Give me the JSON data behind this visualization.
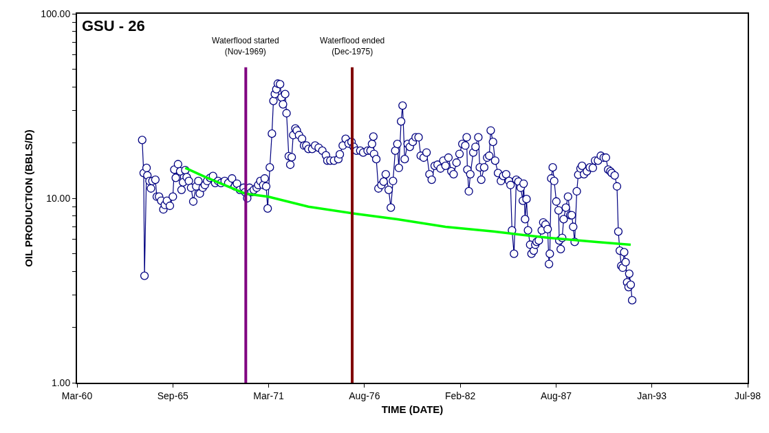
{
  "chart_data": {
    "type": "line",
    "title": "GSU - 26",
    "xlabel": "TIME (DATE)",
    "ylabel": "OIL PRODUCTION (BBLS/D)",
    "log": "y",
    "xlim": [
      "1960-03-25",
      "1998-07-22"
    ],
    "xticks": [
      {
        "value": "1960-03-25",
        "label": "Mar-60"
      },
      {
        "value": "1965-09-15",
        "label": "Sep-65"
      },
      {
        "value": "1971-03-07",
        "label": "Mar-71"
      },
      {
        "value": "1976-08-27",
        "label": "Aug-76"
      },
      {
        "value": "1982-02-17",
        "label": "Feb-82"
      },
      {
        "value": "1987-08-10",
        "label": "Aug-87"
      },
      {
        "value": "1993-01-30",
        "label": "Jan-93"
      },
      {
        "value": "1998-07-22",
        "label": "Jul-98"
      }
    ],
    "ylim": [
      1,
      100
    ],
    "yticks": [
      {
        "value": 1,
        "label": "1.00"
      },
      {
        "value": 2,
        "label": null
      },
      {
        "value": 3,
        "label": null
      },
      {
        "value": 4,
        "label": null
      },
      {
        "value": 5,
        "label": null
      },
      {
        "value": 6,
        "label": null
      },
      {
        "value": 7,
        "label": null
      },
      {
        "value": 8,
        "label": null
      },
      {
        "value": 9,
        "label": null
      },
      {
        "value": 10,
        "label": "10.00"
      },
      {
        "value": 20,
        "label": null
      },
      {
        "value": 30,
        "label": null
      },
      {
        "value": 40,
        "label": null
      },
      {
        "value": 50,
        "label": null
      },
      {
        "value": 60,
        "label": null
      },
      {
        "value": 70,
        "label": null
      },
      {
        "value": 80,
        "label": null
      },
      {
        "value": 90,
        "label": null
      },
      {
        "value": 100,
        "label": "100.00"
      }
    ],
    "ref_lines": [
      {
        "axis": "x",
        "value": "1969-11-15",
        "label": "Waterflood started\n(Nov-1969)",
        "color": "#800080"
      },
      {
        "axis": "x",
        "value": "1975-12-15",
        "label": "Waterflood ended\n(Dec-1975)",
        "color": "#800000"
      }
    ],
    "series": [
      {
        "color": "#000080",
        "marker": "circle",
        "line_style": "solid",
        "x": [
          "1963-12-15",
          "1964-01-15",
          "1964-02-01",
          "1964-03-15",
          "1964-04-01",
          "1964-05-15",
          "1964-06-15",
          "1964-07-15",
          "1964-09-15",
          "1964-10-15",
          "1964-12-01",
          "1965-01-15",
          "1965-03-01",
          "1965-04-01",
          "1965-05-15",
          "1965-07-15",
          "1965-09-15",
          "1965-10-15",
          "1965-11-15",
          "1966-01-01",
          "1966-02-15",
          "1966-03-15",
          "1966-04-15",
          "1966-06-01",
          "1966-07-01",
          "1966-08-15",
          "1966-10-01",
          "1966-11-15",
          "1967-01-15",
          "1967-03-01",
          "1967-04-01",
          "1967-06-01",
          "1967-07-15",
          "1967-09-01",
          "1967-11-01",
          "1968-01-01",
          "1968-02-15",
          "1968-04-15",
          "1968-06-15",
          "1968-09-01",
          "1968-11-15",
          "1969-02-01",
          "1969-04-01",
          "1969-05-15",
          "1969-07-15",
          "1969-10-01",
          "1969-11-01",
          "1969-12-15",
          "1970-02-01",
          "1970-03-15",
          "1970-05-01",
          "1970-07-01",
          "1970-08-01",
          "1970-09-15",
          "1970-11-15",
          "1970-12-15",
          "1971-01-15",
          "1971-02-15",
          "1971-04-01",
          "1971-05-15",
          "1971-06-15",
          "1971-07-15",
          "1971-08-15",
          "1971-09-15",
          "1971-11-01",
          "1971-12-01",
          "1972-01-01",
          "1972-02-15",
          "1972-03-15",
          "1972-05-01",
          "1972-06-01",
          "1972-07-01",
          "1972-08-01",
          "1972-09-15",
          "1972-10-15",
          "1972-12-01",
          "1973-02-01",
          "1973-03-15",
          "1973-05-01",
          "1973-06-15",
          "1973-09-01",
          "1973-11-01",
          "1974-01-15",
          "1974-04-01",
          "1974-06-15",
          "1974-07-15",
          "1974-09-15",
          "1974-12-01",
          "1975-03-01",
          "1975-04-01",
          "1975-06-01",
          "1975-08-01",
          "1975-10-01",
          "1975-12-01",
          "1976-01-15",
          "1976-03-15",
          "1976-06-01",
          "1976-08-01",
          "1976-11-01",
          "1977-01-01",
          "1977-02-01",
          "1977-03-01",
          "1977-03-15",
          "1977-05-01",
          "1977-06-15",
          "1977-08-15",
          "1977-10-01",
          "1977-11-15",
          "1978-01-15",
          "1978-03-01",
          "1978-04-15",
          "1978-06-01",
          "1978-07-15",
          "1978-08-15",
          "1978-10-01",
          "1978-11-01",
          "1978-12-15",
          "1979-02-15",
          "1979-04-01",
          "1979-06-01",
          "1979-08-01",
          "1979-10-01",
          "1979-11-15",
          "1980-01-15",
          "1980-03-15",
          "1980-05-15",
          "1980-07-01",
          "1980-09-01",
          "1980-11-01",
          "1981-01-01",
          "1981-03-01",
          "1981-04-15",
          "1981-06-15",
          "1981-08-15",
          "1981-10-01",
          "1981-12-01",
          "1982-02-01",
          "1982-04-01",
          "1982-06-01",
          "1982-07-01",
          "1982-07-15",
          "1982-08-15",
          "1982-09-15",
          "1982-11-15",
          "1983-01-01",
          "1983-03-01",
          "1983-04-01",
          "1983-05-01",
          "1983-07-01",
          "1983-09-01",
          "1983-10-15",
          "1983-11-15",
          "1984-01-01",
          "1984-02-15",
          "1984-04-15",
          "1984-06-15",
          "1984-08-01",
          "1984-10-01",
          "1984-12-01",
          "1985-01-01",
          "1985-02-01",
          "1985-03-15",
          "1985-05-01",
          "1985-06-15",
          "1985-08-01",
          "1985-09-15",
          "1985-10-01",
          "1985-11-01",
          "1985-12-01",
          "1986-01-01",
          "1986-02-15",
          "1986-03-15",
          "1986-05-01",
          "1986-06-01",
          "1986-07-01",
          "1986-08-15",
          "1986-10-15",
          "1986-11-15",
          "1987-01-01",
          "1987-02-15",
          "1987-03-15",
          "1987-04-01",
          "1987-05-01",
          "1987-06-01",
          "1987-07-01",
          "1987-08-15",
          "1987-10-01",
          "1987-10-15",
          "1987-11-15",
          "1987-12-15",
          "1988-01-15",
          "1988-03-01",
          "1988-04-15",
          "1988-06-01",
          "1988-07-01",
          "1988-08-01",
          "1988-09-01",
          "1988-10-15",
          "1988-11-15",
          "1989-01-01",
          "1989-02-01",
          "1989-03-15",
          "1989-05-15",
          "1989-07-15",
          "1989-09-15",
          "1989-11-01",
          "1990-01-01",
          "1990-03-01",
          "1990-05-01",
          "1990-06-15",
          "1990-08-01",
          "1990-09-15",
          "1990-10-15",
          "1990-12-15",
          "1991-02-01",
          "1991-03-01",
          "1991-04-01",
          "1991-05-01",
          "1991-06-01",
          "1991-07-01",
          "1991-08-01",
          "1991-09-01",
          "1991-10-01",
          "1991-10-15",
          "1991-11-15",
          "1991-12-15"
        ],
        "values": [
          20.7,
          13.7,
          3.8,
          14.6,
          13.3,
          12.4,
          11.3,
          12.4,
          12.6,
          10.2,
          10.2,
          9.7,
          8.7,
          9.2,
          9.7,
          9.1,
          10.2,
          14.3,
          12.9,
          15.3,
          14.0,
          11.1,
          12.2,
          14.2,
          13.0,
          12.4,
          11.4,
          9.6,
          11.6,
          12.4,
          10.6,
          11.4,
          11.8,
          12.4,
          12.9,
          13.2,
          12.1,
          12.4,
          12.1,
          12.4,
          12.1,
          12.8,
          11.6,
          12.0,
          11.1,
          11.4,
          10.8,
          10.0,
          11.4,
          10.8,
          11.1,
          11.4,
          11.8,
          12.4,
          11.8,
          12.8,
          11.6,
          8.8,
          14.7,
          22.4,
          33.7,
          36.7,
          39.0,
          41.8,
          41.5,
          35.2,
          32.3,
          36.7,
          28.9,
          16.9,
          15.2,
          16.7,
          22.0,
          23.9,
          23.3,
          22.0,
          21.0,
          19.3,
          19.3,
          18.5,
          18.5,
          19.3,
          18.8,
          18.1,
          17.1,
          16.0,
          16.0,
          16.0,
          16.3,
          17.3,
          19.3,
          21.0,
          19.8,
          20.2,
          19.0,
          18.1,
          18.1,
          17.7,
          18.1,
          18.1,
          19.7,
          21.6,
          17.4,
          16.3,
          11.3,
          11.8,
          12.3,
          13.5,
          11.1,
          8.9,
          12.4,
          18.1,
          19.7,
          14.6,
          26.1,
          31.8,
          16.3,
          19.7,
          19.0,
          20.2,
          21.4,
          21.4,
          17.0,
          16.6,
          17.7,
          13.5,
          12.6,
          15.0,
          15.2,
          14.5,
          16.0,
          15.0,
          16.6,
          14.0,
          13.5,
          15.6,
          17.4,
          19.7,
          19.3,
          21.4,
          14.3,
          10.9,
          13.5,
          17.7,
          19.0,
          21.4,
          14.7,
          12.6,
          14.7,
          16.6,
          17.0,
          23.3,
          20.2,
          16.0,
          13.7,
          12.4,
          13.2,
          13.5,
          12.4,
          11.8,
          6.7,
          5.0,
          12.6,
          12.3,
          11.4,
          9.7,
          12.0,
          7.7,
          9.9,
          6.7,
          5.6,
          5.0,
          5.2,
          5.6,
          5.8,
          5.9,
          6.7,
          7.4,
          7.2,
          6.8,
          4.4,
          5.0,
          12.8,
          14.7,
          12.4,
          9.6,
          8.6,
          5.9,
          5.3,
          6.1,
          7.7,
          8.9,
          10.2,
          8.1,
          8.1,
          7.0,
          5.8,
          10.9,
          13.4,
          14.5,
          15.0,
          13.5,
          14.0,
          14.7,
          14.6,
          16.0,
          16.0,
          17.0,
          16.6,
          16.6,
          14.3,
          14.0,
          13.7,
          13.3,
          11.6,
          6.6,
          5.2,
          4.3,
          4.2,
          5.1,
          4.5,
          3.5,
          3.3,
          3.9,
          3.4,
          2.8
        ]
      },
      {
        "color": "#00ff00",
        "marker": "none",
        "line_style": "solid",
        "x": [
          "1966-06-01",
          "1967-08-01",
          "1969-11-01",
          "1971-03-01",
          "1973-06-15",
          "1975-12-01",
          "1978-07-15",
          "1981-04-15",
          "1984-01-15",
          "1987-03-15",
          "1989-12-01",
          "1991-11-15"
        ],
        "values": [
          14.6,
          13.0,
          10.6,
          10.2,
          9.0,
          8.3,
          7.7,
          7.0,
          6.6,
          6.1,
          5.8,
          5.6
        ]
      }
    ]
  }
}
